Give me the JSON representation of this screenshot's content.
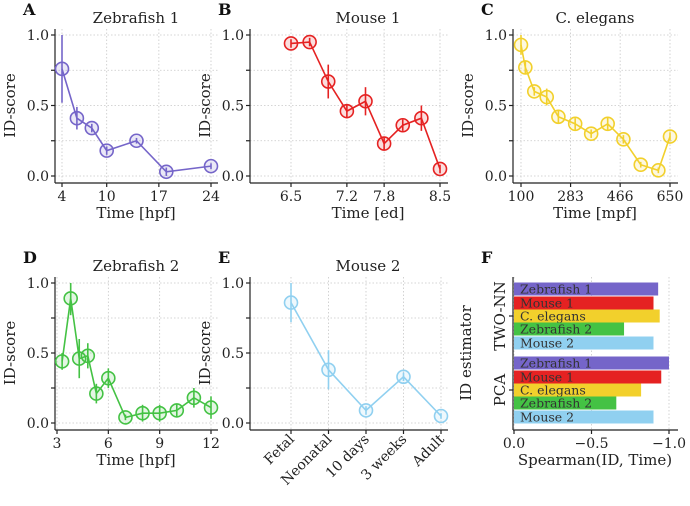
{
  "colors": {
    "Zebrafish 1": "#7565c9",
    "Mouse 1": "#e52222",
    "C. elegans": "#f2d02c",
    "Zebrafish 2": "#44c244",
    "Mouse 2": "#90d0f0"
  },
  "chart_data": [
    {
      "type": "line",
      "letter": "A",
      "title": "Zebrafish 1",
      "xlabel": "Time [hpf]",
      "ylabel": "ID-score",
      "x": [
        4,
        6,
        8,
        10,
        14,
        18,
        24
      ],
      "y": [
        0.76,
        0.41,
        0.34,
        0.18,
        0.25,
        0.03,
        0.07
      ],
      "yerr": [
        0.24,
        0.08,
        0.03,
        0.03,
        0.02,
        0.03,
        0.02
      ],
      "xlim": [
        4,
        24
      ],
      "xticks": [
        4,
        10,
        17,
        24
      ],
      "xticklabels": [
        "4",
        "10",
        "17",
        "24"
      ],
      "ylim": [
        0,
        1
      ],
      "yticklabels": [
        "0.0",
        "0.5",
        "1.0"
      ],
      "grid": true
    },
    {
      "type": "line",
      "letter": "B",
      "title": "Mouse 1",
      "xlabel": "Time [ed]",
      "ylabel": "ID-score",
      "x": [
        6.5,
        6.75,
        7.0,
        7.25,
        7.5,
        7.75,
        8.0,
        8.25,
        8.5
      ],
      "y": [
        0.94,
        0.95,
        0.67,
        0.46,
        0.53,
        0.23,
        0.36,
        0.41,
        0.05
      ],
      "yerr": [
        0.03,
        0.03,
        0.12,
        0.05,
        0.1,
        0.05,
        0.04,
        0.09,
        0.03
      ],
      "xlim": [
        6.5,
        8.5
      ],
      "xticks": [
        6.5,
        7.25,
        7.75,
        8.5
      ],
      "xticklabels": [
        "6.5",
        "7.2",
        "7.8",
        "8.5"
      ],
      "ylim": [
        0,
        1
      ],
      "yticklabels": [
        "0.0",
        "0.5",
        "1.0"
      ],
      "grid": true
    },
    {
      "type": "line",
      "letter": "C",
      "title": "C. elegans",
      "xlabel": "Time [mpf]",
      "ylabel": "ID-score",
      "x": [
        100,
        116,
        149,
        195,
        238,
        300,
        359,
        420,
        478,
        542,
        607,
        650
      ],
      "y": [
        0.93,
        0.77,
        0.6,
        0.56,
        0.42,
        0.37,
        0.3,
        0.37,
        0.26,
        0.08,
        0.04,
        0.28
      ],
      "yerr": [
        0.07,
        0.05,
        0.03,
        0.06,
        0.05,
        0.04,
        0.03,
        0.05,
        0.03,
        0.02,
        0.02,
        0.03
      ],
      "xlim": [
        100,
        650
      ],
      "xticks": [
        100,
        283,
        466,
        650
      ],
      "xticklabels": [
        "100",
        "283",
        "466",
        "650"
      ],
      "ylim": [
        0,
        1
      ],
      "yticklabels": [
        "0.0",
        "0.5",
        "1.0"
      ],
      "grid": true
    },
    {
      "type": "line",
      "letter": "D",
      "title": "Zebrafish 2",
      "xlabel": "Time [hpf]",
      "ylabel": "ID-score",
      "x": [
        3.3,
        3.8,
        4.3,
        4.8,
        5.3,
        6,
        7,
        8,
        9,
        10,
        11,
        12
      ],
      "y": [
        0.44,
        0.89,
        0.46,
        0.48,
        0.21,
        0.32,
        0.04,
        0.07,
        0.07,
        0.09,
        0.18,
        0.11
      ],
      "yerr": [
        0.06,
        0.12,
        0.14,
        0.09,
        0.07,
        0.07,
        0.02,
        0.06,
        0.06,
        0.05,
        0.07,
        0.08
      ],
      "xlim": [
        3,
        12
      ],
      "xticks": [
        3,
        6,
        9,
        12
      ],
      "xticklabels": [
        "3",
        "6",
        "9",
        "12"
      ],
      "ylim": [
        0,
        1
      ],
      "yticklabels": [
        "0.0",
        "0.5",
        "1.0"
      ],
      "grid": true
    },
    {
      "type": "line",
      "letter": "E",
      "title": "Mouse 2",
      "xlabel": "",
      "ylabel": "ID-score",
      "categories": [
        "Fetal",
        "Neonatal",
        "10 days",
        "3 weeks",
        "Adult"
      ],
      "y": [
        0.86,
        0.38,
        0.09,
        0.33,
        0.05
      ],
      "yerr": [
        0.14,
        0.14,
        0.03,
        0.03,
        0.02
      ],
      "ylim": [
        0,
        1
      ],
      "yticklabels": [
        "0.0",
        "0.5",
        "1.0"
      ],
      "grid": true
    },
    {
      "type": "bar",
      "letter": "F",
      "xlabel": "Spearman(ID, Time)",
      "ylabel": "ID estimator",
      "groups": [
        {
          "name": "TWO-NN",
          "bars": [
            {
              "name": "Zebrafish 1",
              "value": -0.93
            },
            {
              "name": "Mouse 1",
              "value": -0.9
            },
            {
              "name": "C. elegans",
              "value": -0.94
            },
            {
              "name": "Zebrafish 2",
              "value": -0.71
            },
            {
              "name": "Mouse 2",
              "value": -0.9
            }
          ]
        },
        {
          "name": "PCA",
          "bars": [
            {
              "name": "Zebrafish 1",
              "value": -1.0
            },
            {
              "name": "Mouse 1",
              "value": -0.95
            },
            {
              "name": "C. elegans",
              "value": -0.82
            },
            {
              "name": "Zebrafish 2",
              "value": -0.66
            },
            {
              "name": "Mouse 2",
              "value": -0.9
            }
          ]
        }
      ],
      "xlim": [
        0,
        -1.0
      ],
      "xticks": [
        0,
        -0.5,
        -1.0
      ],
      "xticklabels": [
        "0.0",
        "−0.5",
        "−1.0"
      ],
      "grid": true
    }
  ]
}
